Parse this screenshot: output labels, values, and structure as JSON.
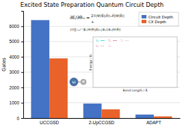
{
  "chart_data": {
    "type": "bar",
    "title": "Excited State Preparation Quantum Circuit Depth",
    "categories": [
      "UCCGSD",
      "2-UpCCGSD",
      "ADAPT"
    ],
    "series": [
      {
        "name": "Circuit Depth",
        "color": "#4472C4",
        "values": [
          6400,
          950,
          230
        ]
      },
      {
        "name": "CX Depth",
        "color": "#E8622A",
        "values": [
          3900,
          570,
          110
        ]
      }
    ],
    "y_label": "Gates",
    "ylim": [
      0,
      7000
    ],
    "yticks": [
      0,
      1000,
      2000,
      3000,
      4000,
      5000,
      6000
    ],
    "grid": true,
    "legend": "upper right",
    "annotations": [
      {
        "text": "∂E/∂θₘ"
      },
      {
        "text": "="
      },
      {
        "text": "2ℛ⟨Ψ(θ⃗)|Â†ₘĤ|Ψ(θ⃗)⟩"
      },
      {
        "text": "+"
      },
      {
        "text": "2ℛ∑ₛ₌₀ᴶ⁻¹βₛ⟨Ψ(θ⃗)|Â†ₘ|Φₛ⟩⟨Φₛ|Ψ(θ⃗)⟩"
      },
      {
        "text": "Li"
      },
      {
        "text": "H"
      },
      {
        "text": "Bond Length / Å"
      },
      {
        "text": "Energy / Eₕ"
      },
      {
        "text": "S₀",
        "color": "#00CCCC"
      },
      {
        "text": "T₁",
        "color": "#CC6688"
      },
      {
        "text": "T₂",
        "color": "#DDAACC"
      },
      {
        "text": "S₁",
        "color": "#DD88AA"
      },
      {
        "text": "T₂",
        "color": "#DDAACC"
      }
    ]
  }
}
